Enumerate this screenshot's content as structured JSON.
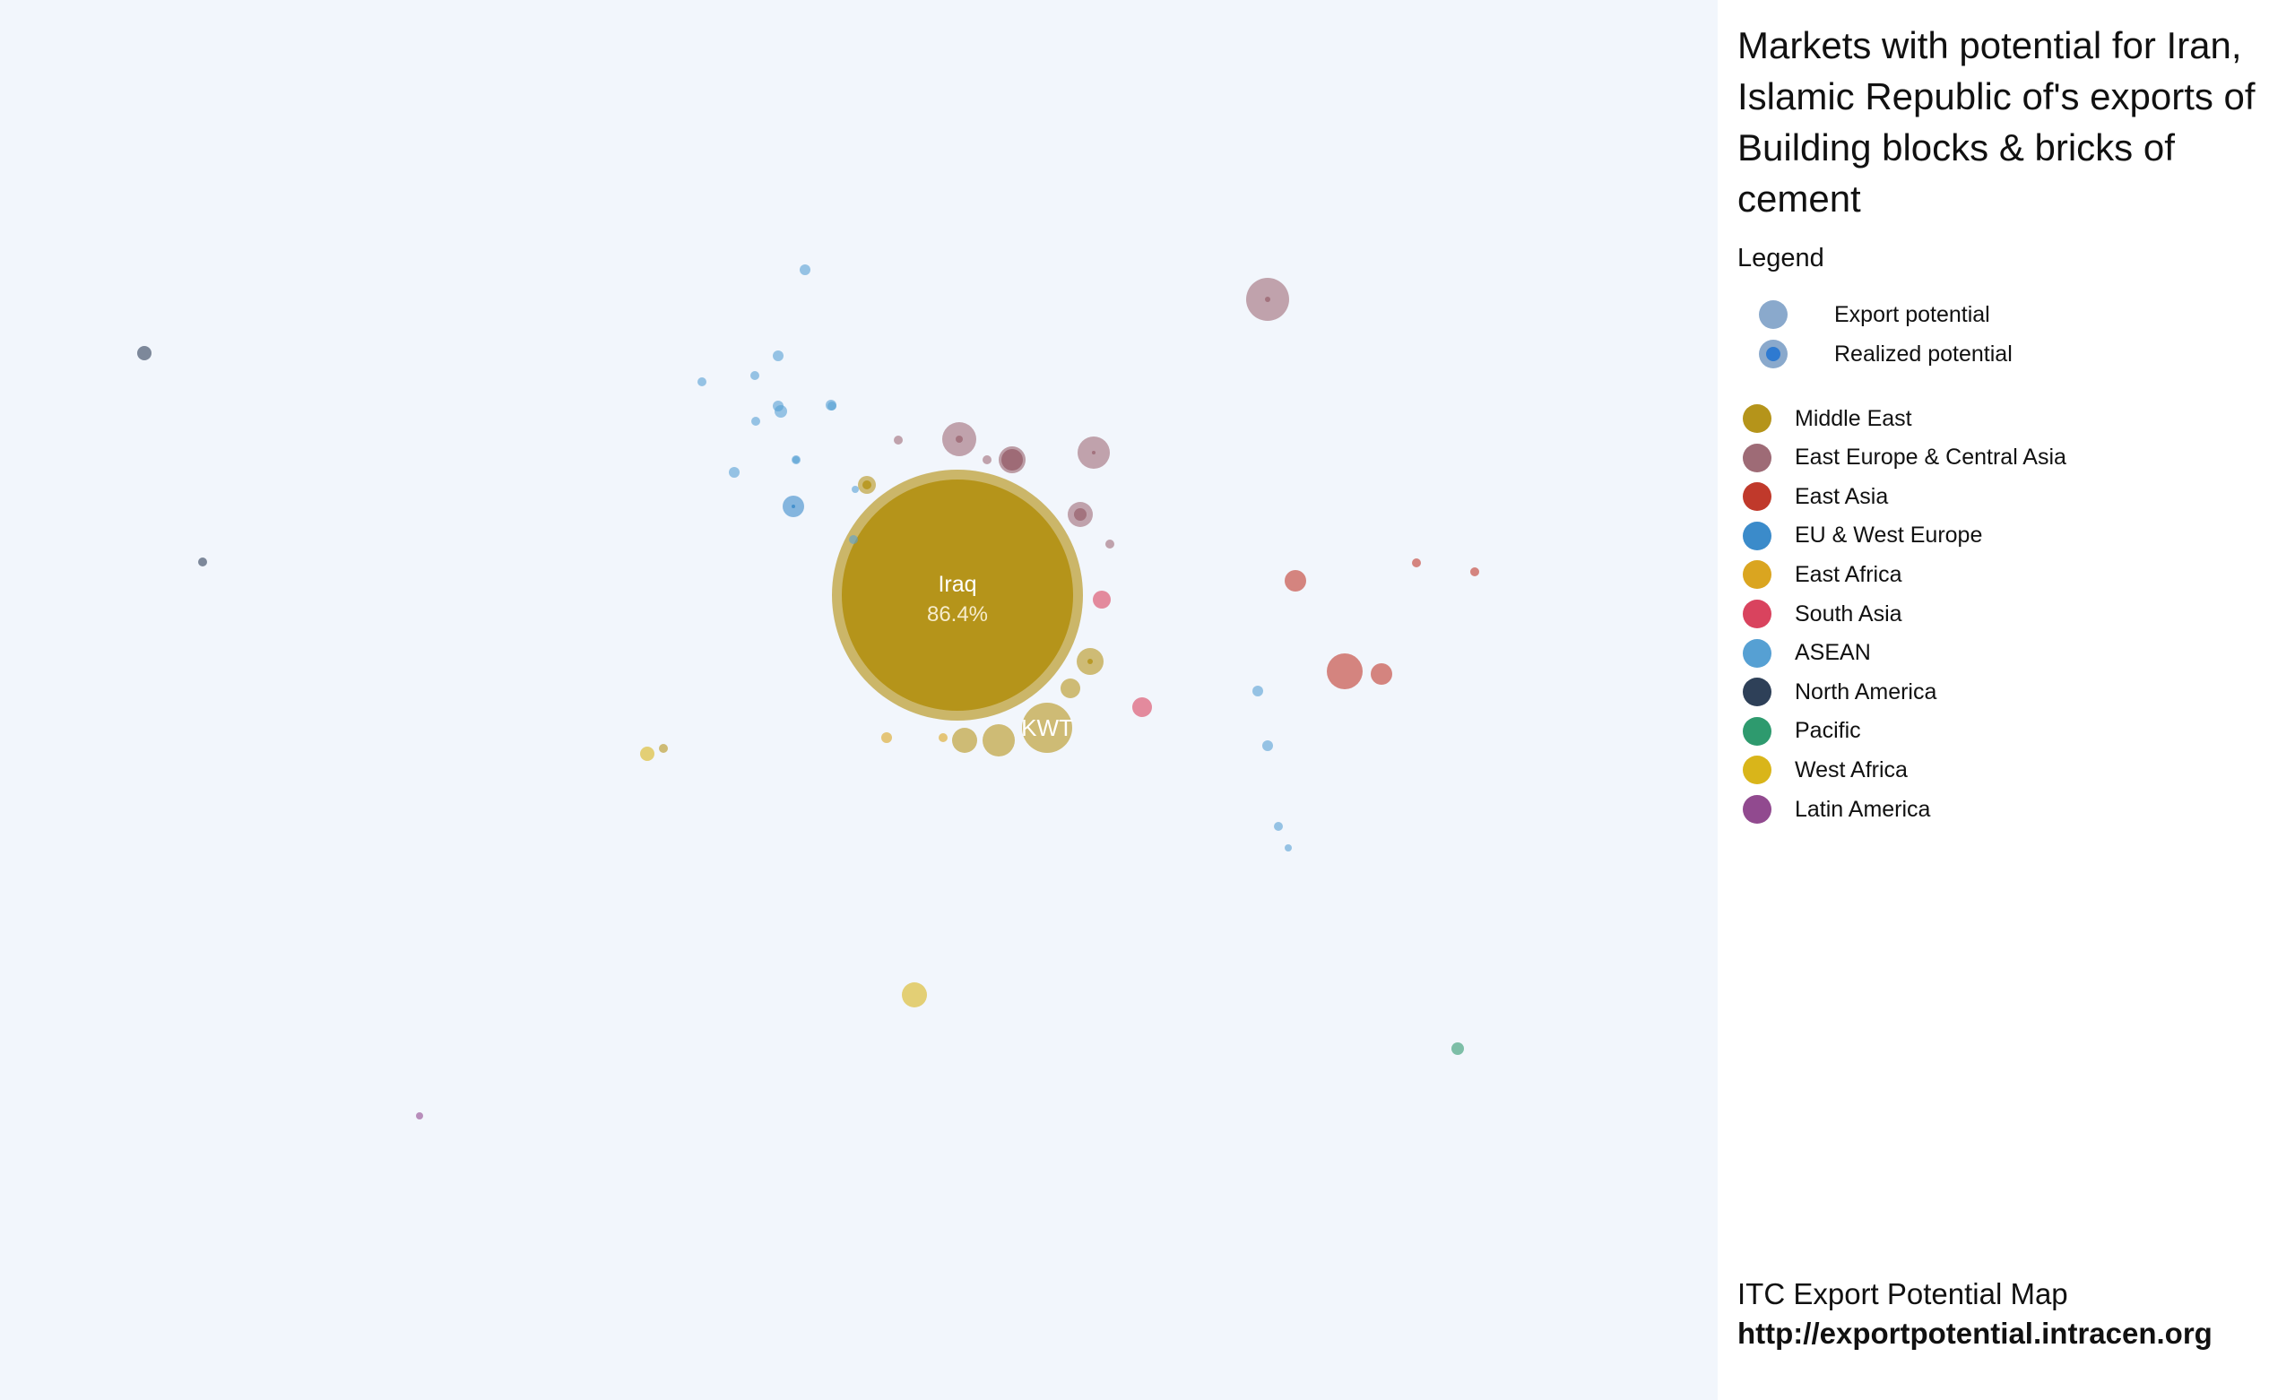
{
  "title": "Markets with potential for Iran, Islamic Republic of's exports of Building blocks & bricks of cement",
  "legend": {
    "title": "Legend",
    "symbols": [
      {
        "label": "Export potential",
        "icon": "export-potential-circle"
      },
      {
        "label": "Realized potential",
        "icon": "realized-potential-circle"
      }
    ],
    "regions": [
      {
        "label": "Middle East",
        "color": "#b5941a"
      },
      {
        "label": "East Europe & Central Asia",
        "color": "#9e6b76"
      },
      {
        "label": "East Asia",
        "color": "#c0392b"
      },
      {
        "label": "EU & West Europe",
        "color": "#3b8bca"
      },
      {
        "label": "East Africa",
        "color": "#daa520"
      },
      {
        "label": "South Asia",
        "color": "#d9435e"
      },
      {
        "label": "ASEAN",
        "color": "#56a0d3"
      },
      {
        "label": "North America",
        "color": "#2e4058"
      },
      {
        "label": "Pacific",
        "color": "#2e9a6e"
      },
      {
        "label": "West Africa",
        "color": "#d9b51a"
      },
      {
        "label": "Latin America",
        "color": "#914a8f"
      }
    ]
  },
  "footer": {
    "line1": "ITC Export Potential Map",
    "line2": "http://exportpotential.intracen.org"
  },
  "chart_data": {
    "type": "scatter",
    "bubbles": [
      {
        "label": "Iraq",
        "share": "86.4%",
        "region": "Middle East",
        "value": 140,
        "realized": 129
      },
      {
        "label": "KWT",
        "region": "Middle East",
        "value": 28,
        "realized": 0
      },
      {
        "region": "Middle East",
        "value": 18,
        "realized": 0
      },
      {
        "region": "Middle East",
        "value": 15,
        "realized": 3
      },
      {
        "region": "Middle East",
        "value": 14,
        "realized": 0
      },
      {
        "region": "Middle East",
        "value": 11,
        "realized": 0
      },
      {
        "region": "Middle East",
        "value": 10,
        "realized": 5
      },
      {
        "region": "Middle East",
        "value": 5,
        "realized": 0
      },
      {
        "region": "Middle East",
        "value": 5,
        "realized": 0
      },
      {
        "region": "East Europe & Central Asia",
        "value": 24,
        "realized": 3
      },
      {
        "region": "East Europe & Central Asia",
        "value": 19,
        "realized": 4
      },
      {
        "region": "East Europe & Central Asia",
        "value": 18,
        "realized": 2
      },
      {
        "region": "East Europe & Central Asia",
        "value": 15,
        "realized": 12
      },
      {
        "region": "East Europe & Central Asia",
        "value": 14,
        "realized": 7
      },
      {
        "region": "East Europe & Central Asia",
        "value": 5,
        "realized": 0
      },
      {
        "region": "East Europe & Central Asia",
        "value": 5,
        "realized": 0
      },
      {
        "region": "East Europe & Central Asia",
        "value": 5,
        "realized": 0
      },
      {
        "region": "South Asia",
        "value": 11,
        "realized": 0
      },
      {
        "region": "South Asia",
        "value": 10,
        "realized": 0
      },
      {
        "region": "East Asia",
        "value": 20,
        "realized": 0
      },
      {
        "region": "East Asia",
        "value": 12,
        "realized": 0
      },
      {
        "region": "East Asia",
        "value": 12,
        "realized": 0
      },
      {
        "region": "East Asia",
        "value": 5,
        "realized": 0
      },
      {
        "region": "East Asia",
        "value": 5,
        "realized": 0
      },
      {
        "region": "EU & West Europe",
        "value": 12,
        "realized": 2
      },
      {
        "region": "ASEAN",
        "value": 6,
        "realized": 0
      },
      {
        "region": "ASEAN",
        "value": 6,
        "realized": 0
      },
      {
        "region": "ASEAN",
        "value": 5,
        "realized": 0
      },
      {
        "region": "ASEAN",
        "value": 5,
        "realized": 0
      },
      {
        "region": "ASEAN",
        "value": 7,
        "realized": 0
      },
      {
        "region": "ASEAN",
        "value": 6,
        "realized": 0
      },
      {
        "region": "ASEAN",
        "value": 5,
        "realized": 0
      },
      {
        "region": "ASEAN",
        "value": 6,
        "realized": 0
      },
      {
        "region": "ASEAN",
        "value": 5,
        "realized": 0
      },
      {
        "region": "ASEAN",
        "value": 4,
        "realized": 0
      },
      {
        "region": "ASEAN",
        "value": 5,
        "realized": 0
      },
      {
        "region": "ASEAN",
        "value": 6,
        "realized": 0
      },
      {
        "region": "ASEAN",
        "value": 4,
        "realized": 0
      },
      {
        "region": "ASEAN",
        "value": 5,
        "realized": 0
      },
      {
        "region": "ASEAN",
        "value": 6,
        "realized": 0
      },
      {
        "region": "ASEAN",
        "value": 6,
        "realized": 0
      },
      {
        "region": "ASEAN",
        "value": 5,
        "realized": 0
      },
      {
        "region": "ASEAN",
        "value": 4,
        "realized": 0
      },
      {
        "region": "North America",
        "value": 8,
        "realized": 0
      },
      {
        "region": "North America",
        "value": 5,
        "realized": 0
      },
      {
        "region": "West Africa",
        "value": 14,
        "realized": 0
      },
      {
        "region": "West Africa",
        "value": 8,
        "realized": 0
      },
      {
        "region": "East Africa",
        "value": 6,
        "realized": 0
      },
      {
        "region": "East Africa",
        "value": 5,
        "realized": 0
      },
      {
        "region": "Pacific",
        "value": 7,
        "realized": 0
      },
      {
        "region": "Latin America",
        "value": 4,
        "realized": 0
      }
    ]
  }
}
